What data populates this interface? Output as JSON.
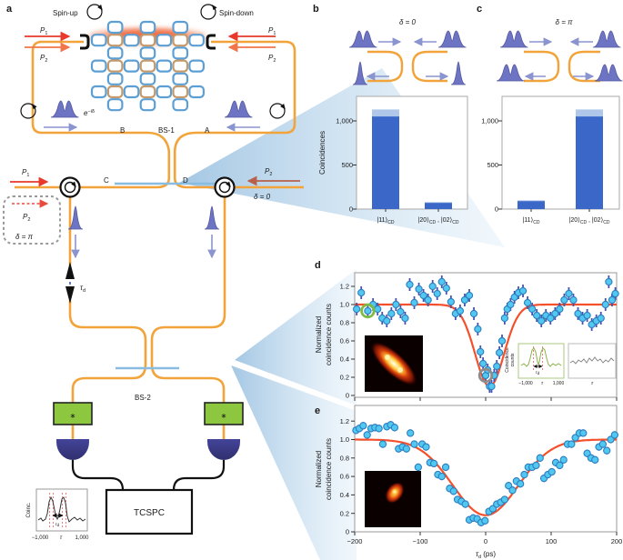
{
  "panel_a": {
    "label": "a",
    "spin_up": "Spin-up",
    "spin_down": "Spin-down",
    "p": "P",
    "p1_sub": "1",
    "p2_sub": "2",
    "exp_base": "e",
    "exp_sup": "−iδ",
    "port_b": "B",
    "bs1": "BS-1",
    "port_a": "A",
    "port_c": "C",
    "port_d": "D",
    "bs2": "BS-2",
    "delta_zero": "δ = 0",
    "delta_pi": "δ = π",
    "tau_base": "τ",
    "tau_sub": "d",
    "tcspc": "TCSPC",
    "filter_glyph": "∗",
    "lattice": {
      "rows": [
        3,
        7,
        3,
        7,
        3,
        7,
        3
      ],
      "ring_color": "#5C9FD4",
      "alt_color": "#C49A6C"
    },
    "inset": {
      "ylabel": "Coinc.",
      "x_min": "−1,000",
      "x_mid": "τ",
      "x_max": "1,000",
      "tau_base": "τ",
      "tau_sub": "d"
    }
  },
  "panel_b": {
    "label": "b"
  },
  "panel_c": {
    "label": "c"
  },
  "panel_d": {
    "label": "d",
    "inset_green": {
      "ylabel1": "Coincidence",
      "ylabel2": "counts",
      "x_min": "−1,000",
      "x_mid": "τ",
      "x_max": "1,000",
      "tau_base": "τ",
      "tau_sub": "d"
    },
    "inset_gray": {
      "x_label": "τ"
    }
  },
  "panel_e": {
    "label": "e"
  },
  "chart_data": [
    {
      "id": "coinc_b",
      "panel": "b",
      "type": "bar",
      "title": "δ = 0",
      "ylabel": "Coincidences",
      "categories": [
        "|11⟩CD",
        "|20⟩CD , |02⟩CD"
      ],
      "label_parts": {
        "cat1": "|11⟩",
        "cat1_sub": "CD",
        "cat2a": "|20⟩",
        "cat2a_sub": "CD",
        "cat2sep": " , ",
        "cat2b": "|02⟩",
        "cat2b_sub": "CD"
      },
      "series": [
        {
          "name": "main",
          "values": [
            1050,
            70
          ]
        },
        {
          "name": "cap",
          "values": [
            1130,
            80
          ]
        }
      ],
      "yticks": [
        "0",
        "500",
        "1,000"
      ],
      "ytick_values": [
        0,
        500,
        1000
      ],
      "ylim": [
        0,
        1280
      ],
      "colors": {
        "main": "#3A67C8",
        "cap": "#AFC8EA"
      }
    },
    {
      "id": "coinc_c",
      "panel": "c",
      "type": "bar",
      "title": "δ = π",
      "ylabel": "Coincidences",
      "categories": [
        "|11⟩CD",
        "|20⟩CD , |02⟩CD"
      ],
      "label_parts": {
        "cat1": "|11⟩",
        "cat1_sub": "CD",
        "cat2a": "|20⟩",
        "cat2a_sub": "CD",
        "cat2sep": " , ",
        "cat2b": "|02⟩",
        "cat2b_sub": "CD"
      },
      "series": [
        {
          "name": "main",
          "values": [
            90,
            1050
          ]
        },
        {
          "name": "cap",
          "values": [
            100,
            1130
          ]
        }
      ],
      "yticks": [
        "0",
        "500",
        "1,000"
      ],
      "ytick_values": [
        0,
        500,
        1000
      ],
      "ylim": [
        0,
        1280
      ],
      "colors": {
        "main": "#3A67C8",
        "cap": "#AFC8EA"
      }
    },
    {
      "id": "hom_d",
      "panel": "d",
      "type": "scatter",
      "ylabel": [
        "Normalized",
        "coincidence counts"
      ],
      "xlim": [
        -200,
        200
      ],
      "ylim": [
        0,
        1.35
      ],
      "yticks": [
        "0",
        "0.2",
        "0.4",
        "0.6",
        "0.8",
        "1.0",
        "1.2"
      ],
      "ytick_values": [
        0,
        0.2,
        0.4,
        0.6,
        0.8,
        1.0,
        1.2
      ],
      "xtick_values": [
        -200,
        -100,
        0,
        100,
        200
      ],
      "error_bar": 0.07,
      "marker_color": "#50C8F0",
      "marker_stroke": "#2E7EC0",
      "error_color": "#4553B0",
      "fit": {
        "shape": "inverted_gaussian",
        "baseline": 1.0,
        "center": 6,
        "sigma": 22,
        "min": 0.1,
        "color": "#F4502C"
      },
      "highlights": [
        {
          "x": -180,
          "y": 0.93,
          "ring": "#7DBB42"
        },
        {
          "x": 0,
          "y": 0.22,
          "ring": "#8C8C8C"
        }
      ],
      "points": [
        [
          -197,
          0.95
        ],
        [
          -190,
          1.13
        ],
        [
          -180,
          0.93
        ],
        [
          -172,
          1.0
        ],
        [
          -165,
          0.95
        ],
        [
          -158,
          0.85
        ],
        [
          -151,
          0.82
        ],
        [
          -144,
          0.9
        ],
        [
          -137,
          1.0
        ],
        [
          -130,
          0.92
        ],
        [
          -123,
          0.85
        ],
        [
          -116,
          1.22
        ],
        [
          -109,
          1.02
        ],
        [
          -102,
          1.17
        ],
        [
          -95,
          1.1
        ],
        [
          -88,
          1.05
        ],
        [
          -81,
          1.2
        ],
        [
          -74,
          1.12
        ],
        [
          -67,
          1.25
        ],
        [
          -60,
          1.18
        ],
        [
          -53,
          1.03
        ],
        [
          -46,
          0.9
        ],
        [
          -39,
          0.93
        ],
        [
          -32,
          1.05
        ],
        [
          -25,
          1.1
        ],
        [
          -18,
          0.9
        ],
        [
          -12,
          0.73
        ],
        [
          -8,
          0.48
        ],
        [
          -4,
          0.35
        ],
        [
          0,
          0.22
        ],
        [
          3,
          0.28
        ],
        [
          6,
          0.1
        ],
        [
          9,
          0.1
        ],
        [
          13,
          0.22
        ],
        [
          17,
          0.32
        ],
        [
          21,
          0.47
        ],
        [
          25,
          0.6
        ],
        [
          29,
          0.85
        ],
        [
          33,
          0.95
        ],
        [
          38,
          1.0
        ],
        [
          44,
          1.08
        ],
        [
          50,
          1.13
        ],
        [
          57,
          1.15
        ],
        [
          64,
          1.02
        ],
        [
          71,
          0.95
        ],
        [
          78,
          0.88
        ],
        [
          85,
          0.82
        ],
        [
          92,
          0.88
        ],
        [
          99,
          0.85
        ],
        [
          106,
          0.9
        ],
        [
          113,
          0.95
        ],
        [
          120,
          1.05
        ],
        [
          127,
          1.12
        ],
        [
          134,
          1.05
        ],
        [
          141,
          0.9
        ],
        [
          148,
          0.85
        ],
        [
          155,
          0.88
        ],
        [
          162,
          0.78
        ],
        [
          169,
          0.82
        ],
        [
          176,
          0.85
        ],
        [
          183,
          1.0
        ],
        [
          188,
          1.25
        ],
        [
          193,
          1.05
        ],
        [
          198,
          1.12
        ]
      ]
    },
    {
      "id": "hom_e",
      "panel": "e",
      "type": "scatter",
      "ylabel": [
        "Normalized",
        "coincidence counts"
      ],
      "xlabel": {
        "base": "τ",
        "sub": "d",
        "unit": " (ps)"
      },
      "xlim": [
        -200,
        200
      ],
      "ylim": [
        0,
        1.35
      ],
      "yticks": [
        "0",
        "0.2",
        "0.4",
        "0.6",
        "0.8",
        "1.0",
        "1.2"
      ],
      "ytick_values": [
        0,
        0.2,
        0.4,
        0.6,
        0.8,
        1.0,
        1.2
      ],
      "xtick_values": [
        -200,
        -100,
        0,
        100,
        200
      ],
      "xtick_labels": [
        "−200",
        "−100",
        "0",
        "100",
        "200"
      ],
      "error_bar": 0.04,
      "marker_color": "#50C8F0",
      "marker_stroke": "#2E7EC0",
      "error_color": "#4553B0",
      "fit": {
        "shape": "inverted_gaussian",
        "baseline": 1.0,
        "center": 0,
        "sigma": 50,
        "min": 0.18,
        "color": "#F4502C"
      },
      "highlights": [],
      "points": [
        [
          -198,
          1.1
        ],
        [
          -193,
          1.12
        ],
        [
          -187,
          1.15
        ],
        [
          -181,
          1.05
        ],
        [
          -175,
          1.12
        ],
        [
          -169,
          1.13
        ],
        [
          -163,
          1.12
        ],
        [
          -157,
          0.95
        ],
        [
          -151,
          1.14
        ],
        [
          -145,
          1.16
        ],
        [
          -139,
          1.13
        ],
        [
          -133,
          0.9
        ],
        [
          -127,
          0.92
        ],
        [
          -121,
          0.9
        ],
        [
          -115,
          1.07
        ],
        [
          -109,
          0.95
        ],
        [
          -103,
          0.7
        ],
        [
          -97,
          0.95
        ],
        [
          -91,
          0.92
        ],
        [
          -85,
          0.75
        ],
        [
          -79,
          0.74
        ],
        [
          -73,
          0.62
        ],
        [
          -67,
          0.6
        ],
        [
          -61,
          0.7
        ],
        [
          -55,
          0.47
        ],
        [
          -49,
          0.44
        ],
        [
          -43,
          0.35
        ],
        [
          -37,
          0.33
        ],
        [
          -31,
          0.3
        ],
        [
          -25,
          0.13
        ],
        [
          -19,
          0.15
        ],
        [
          -13,
          0.14
        ],
        [
          -7,
          0.1
        ],
        [
          -1,
          0.12
        ],
        [
          5,
          0.22
        ],
        [
          11,
          0.25
        ],
        [
          17,
          0.3
        ],
        [
          23,
          0.32
        ],
        [
          29,
          0.35
        ],
        [
          35,
          0.5
        ],
        [
          41,
          0.45
        ],
        [
          47,
          0.55
        ],
        [
          53,
          0.52
        ],
        [
          59,
          0.62
        ],
        [
          65,
          0.7
        ],
        [
          71,
          0.7
        ],
        [
          77,
          0.72
        ],
        [
          83,
          0.8
        ],
        [
          89,
          0.58
        ],
        [
          95,
          0.62
        ],
        [
          101,
          0.65
        ],
        [
          107,
          0.75
        ],
        [
          113,
          0.72
        ],
        [
          119,
          0.78
        ],
        [
          125,
          0.95
        ],
        [
          131,
          0.95
        ],
        [
          137,
          1.02
        ],
        [
          143,
          1.07
        ],
        [
          149,
          1.07
        ],
        [
          155,
          0.85
        ],
        [
          161,
          0.8
        ],
        [
          167,
          0.78
        ],
        [
          173,
          0.92
        ],
        [
          179,
          0.95
        ],
        [
          185,
          0.88
        ],
        [
          191,
          1.0
        ],
        [
          197,
          1.05
        ]
      ]
    }
  ]
}
